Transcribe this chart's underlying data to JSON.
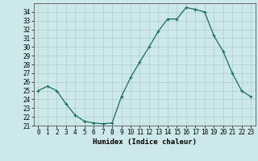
{
  "x": [
    0,
    1,
    2,
    3,
    4,
    5,
    6,
    7,
    8,
    9,
    10,
    11,
    12,
    13,
    14,
    15,
    16,
    17,
    18,
    19,
    20,
    21,
    22,
    23
  ],
  "y": [
    25,
    25.5,
    25,
    23.5,
    22.2,
    21.5,
    21.3,
    21.2,
    21.3,
    24.3,
    26.5,
    28.3,
    30,
    31.8,
    33.2,
    33.2,
    34.5,
    34.3,
    34.0,
    31.3,
    29.5,
    27.0,
    25.0,
    24.3
  ],
  "line_color": "#1a6b5e",
  "marker": "+",
  "marker_size": 3,
  "marker_lw": 0.8,
  "line_width": 0.9,
  "bg_color": "#cce8ea",
  "grid_color": "#aacccc",
  "xlabel": "Humidex (Indice chaleur)",
  "ylim": [
    21,
    35
  ],
  "xlim": [
    -0.5,
    23.5
  ],
  "yticks": [
    21,
    22,
    23,
    24,
    25,
    26,
    27,
    28,
    29,
    30,
    31,
    32,
    33,
    34
  ],
  "xticks": [
    0,
    1,
    2,
    3,
    4,
    5,
    6,
    7,
    8,
    9,
    10,
    11,
    12,
    13,
    14,
    15,
    16,
    17,
    18,
    19,
    20,
    21,
    22,
    23
  ],
  "label_fontsize": 6.5,
  "tick_fontsize": 5.5
}
